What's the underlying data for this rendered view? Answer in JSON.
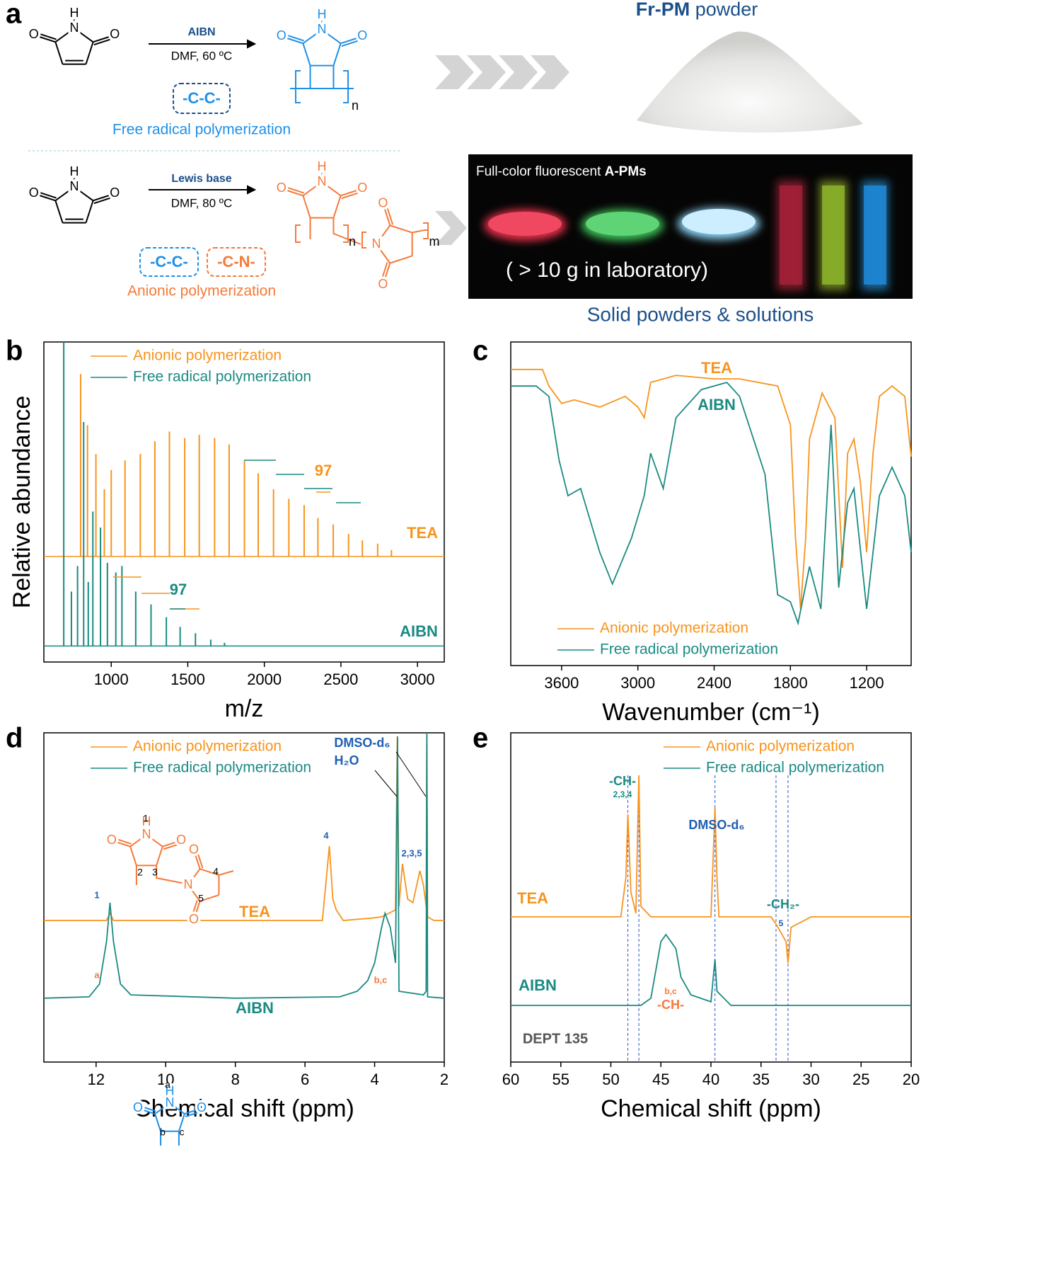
{
  "panel_labels": [
    "a",
    "b",
    "c",
    "d",
    "e"
  ],
  "scheme": {
    "atoms": [
      "O",
      "N",
      "H",
      "n",
      "m"
    ],
    "top": {
      "reagent": "AIBN",
      "conditions": "DMF, 60 ºC",
      "bond": "-C-C-",
      "label": "Free radical polymerization"
    },
    "bottom": {
      "reagent": "Lewis base",
      "conditions": "DMF, 80 ºC",
      "bonds": [
        "-C-C-",
        "-C-N-"
      ],
      "label": "Anionic polymerization"
    },
    "powder": {
      "bold": "Fr-PM",
      "rest": " powder"
    },
    "photo": {
      "prefix": "Full-color fluorescent ",
      "bold": "A-PMs",
      "scale": "( > 10 g in laboratory)",
      "caption": "Solid powders & solutions"
    }
  },
  "chart_data": [
    {
      "type": "stick",
      "xlabel": "m/z",
      "ylabel": "Relative abundance",
      "xlim": [
        560,
        3175
      ],
      "ylim": [
        0,
        100
      ],
      "xticks": [
        1000,
        1500,
        2000,
        2500,
        3000
      ],
      "legend": "upper left",
      "series": [
        {
          "name": "Anionic polymerization",
          "color": "#f7941d",
          "baseline": 33,
          "x": [
            800,
            845,
            900,
            955,
            1000,
            1090,
            1190,
            1285,
            1380,
            1480,
            1575,
            1675,
            1770,
            1870,
            1960,
            2060,
            2160,
            2260,
            2350,
            2450,
            2550,
            2640,
            2740,
            2830
          ],
          "values": [
            90,
            74,
            65,
            54,
            60,
            63,
            65,
            69,
            72,
            70,
            71,
            70,
            68,
            63,
            59,
            54,
            51,
            49,
            45,
            43,
            40,
            38,
            37,
            35
          ]
        },
        {
          "name": "Free radical polymerization",
          "color": "#1a8a82",
          "baseline": 5,
          "x": [
            690,
            740,
            780,
            820,
            850,
            880,
            930,
            975,
            1030,
            1070,
            1160,
            1260,
            1360,
            1450,
            1550,
            1650,
            1740
          ],
          "values": [
            100,
            22,
            30,
            75,
            25,
            47,
            42,
            31,
            28,
            30,
            22,
            18,
            14,
            11,
            9,
            7,
            6
          ]
        }
      ],
      "annotations": [
        "97",
        "97",
        "TEA",
        "AIBN"
      ]
    },
    {
      "type": "line",
      "xlabel": "Wavenumber (cm⁻¹)",
      "xlim": [
        4000,
        850
      ],
      "ylim": [
        0,
        100
      ],
      "xticks": [
        3600,
        3000,
        2400,
        1800,
        1200
      ],
      "legend": "lower left",
      "series": [
        {
          "name": "Anionic polymerization",
          "color": "#f7941d",
          "x": [
            4000,
            3750,
            3700,
            3600,
            3500,
            3300,
            3100,
            3000,
            2950,
            2900,
            2700,
            2400,
            2200,
            1900,
            1800,
            1760,
            1720,
            1680,
            1650,
            1550,
            1450,
            1390,
            1350,
            1300,
            1250,
            1200,
            1150,
            1100,
            1000,
            900,
            850
          ],
          "values": [
            91.5,
            91.5,
            86.4,
            81.0,
            82.1,
            79.9,
            83.2,
            79.9,
            76.6,
            87.5,
            89.7,
            88.6,
            88.6,
            86.4,
            74.4,
            39.4,
            17.5,
            39.4,
            70.0,
            84.2,
            76.6,
            30.2,
            65.6,
            70.0,
            56.9,
            35.0,
            65.6,
            83.2,
            86.4,
            83.2,
            64.6
          ]
        },
        {
          "name": "Free radical polymerization",
          "color": "#1a8a82",
          "x": [
            4000,
            3800,
            3700,
            3620,
            3550,
            3450,
            3300,
            3200,
            3050,
            2950,
            2900,
            2800,
            2700,
            2500,
            2300,
            2200,
            2000,
            1900,
            1800,
            1740,
            1650,
            1560,
            1480,
            1420,
            1350,
            1300,
            1200,
            1100,
            1000,
            900,
            850
          ],
          "values": [
            86.4,
            86.4,
            83.2,
            63.5,
            52.5,
            54.7,
            35.0,
            25.2,
            39.4,
            52.5,
            65.6,
            54.7,
            76.6,
            85.3,
            87.5,
            83.2,
            59.1,
            21.9,
            19.7,
            13.1,
            30.6,
            17.5,
            74.4,
            24.1,
            50.3,
            54.7,
            17.5,
            52.5,
            61.3,
            52.5,
            35.0
          ]
        }
      ],
      "annotations": [
        "TEA",
        "AIBN"
      ]
    },
    {
      "type": "line",
      "xlabel": "Chemical shift (ppm)",
      "xlim": [
        13.5,
        2
      ],
      "ylim": [
        0,
        100
      ],
      "xticks": [
        12,
        10,
        8,
        6,
        4,
        2
      ],
      "legend": "upper left",
      "series": [
        {
          "name": "Anionic polymerization",
          "color": "#f7941d",
          "x": [
            13.5,
            11.7,
            11.6,
            11.5,
            8,
            5.5,
            5.3,
            5.2,
            5.1,
            4.9,
            4.1,
            3.8,
            3.4,
            3.35,
            3.3,
            3.2,
            3.05,
            2.9,
            2.7,
            2.6,
            2.52,
            2.5,
            2.48,
            2.3,
            2
          ],
          "values": [
            43.0,
            43.0,
            45.2,
            43.0,
            43.0,
            43.0,
            65.6,
            49.5,
            46.2,
            43.0,
            43.7,
            44.1,
            46.2,
            98.9,
            47.3,
            60.2,
            49.5,
            48.4,
            58.1,
            53.8,
            47.3,
            100,
            44.1,
            43.0,
            43.0
          ]
        },
        {
          "name": "Free radical polymerization",
          "color": "#1a8a82",
          "x": [
            13.5,
            12.2,
            11.9,
            11.7,
            11.6,
            11.5,
            11.3,
            11.0,
            8,
            5,
            4.5,
            4.2,
            4.0,
            3.8,
            3.7,
            3.55,
            3.4,
            3.34,
            3.3,
            2.6,
            2.52,
            2.5,
            2.48,
            2
          ],
          "values": [
            19.4,
            19.8,
            23.7,
            36.6,
            48.4,
            36.6,
            23.7,
            20.4,
            19.4,
            19.8,
            21.5,
            24.7,
            30.1,
            40.9,
            45.2,
            40.9,
            30.1,
            98.9,
            21.5,
            20.4,
            21.5,
            100,
            19.8,
            19.4
          ]
        }
      ],
      "annotations": [
        "1",
        "4",
        "2,3,5",
        "a",
        "b,c",
        "DMSO-d₆",
        "H₂O",
        "TEA",
        "AIBN"
      ],
      "structure_labels": [
        "1",
        "2",
        "3",
        "4",
        "5",
        "a",
        "b",
        "c"
      ]
    },
    {
      "type": "line",
      "xlabel": "Chemical shift (ppm)",
      "xlim": [
        60,
        20
      ],
      "ylim": [
        0,
        100
      ],
      "xticks": [
        60,
        55,
        50,
        45,
        40,
        35,
        30,
        25,
        20
      ],
      "legend": "upper right",
      "reference_lines": [
        48.3,
        47.2,
        39.6,
        33.5,
        32.3
      ],
      "series": [
        {
          "name": "Anionic polymerization",
          "color": "#f7941d",
          "x": [
            60,
            49,
            48.5,
            48.3,
            48.0,
            47.5,
            47.2,
            47.0,
            46,
            40,
            39.8,
            39.6,
            39.4,
            39.2,
            34,
            33.5,
            32.5,
            32.3,
            32,
            30,
            20
          ],
          "values": [
            44.1,
            44.1,
            55.9,
            75.3,
            51.6,
            45.2,
            87.1,
            47.3,
            44.1,
            44.1,
            60.2,
            77.4,
            55.9,
            44.1,
            44.1,
            41.9,
            36.6,
            30.1,
            40.9,
            44.1,
            44.1
          ]
        },
        {
          "name": "Free radical polymerization",
          "color": "#1a8a82",
          "x": [
            60,
            47,
            46,
            45,
            44.5,
            44,
            43.5,
            43,
            42,
            40,
            39.6,
            39.4,
            38,
            20
          ],
          "values": [
            17.2,
            17.2,
            19.4,
            36.6,
            38.7,
            36.6,
            34.4,
            25.8,
            20.4,
            18.3,
            31.2,
            21.5,
            17.2,
            17.2
          ]
        }
      ],
      "annotations": [
        "-CH-",
        "2,3,4",
        "-CH₂-",
        "5",
        "DMSO-d₆",
        "b,c",
        "-CH-",
        "TEA",
        "AIBN",
        "DEPT 135"
      ]
    }
  ]
}
